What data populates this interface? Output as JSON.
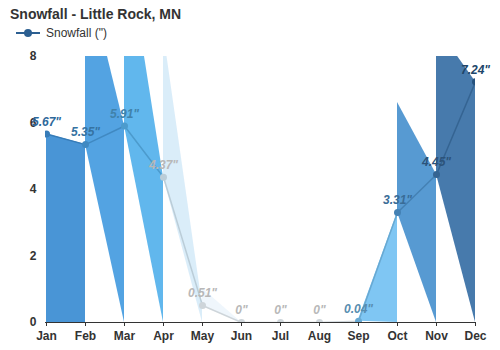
{
  "chart_data": {
    "type": "area",
    "title": "Snowfall - Little Rock, MN",
    "categories": [
      "Jan",
      "Feb",
      "Mar",
      "Apr",
      "May",
      "Jun",
      "Jul",
      "Aug",
      "Sep",
      "Oct",
      "Nov",
      "Dec"
    ],
    "series": [
      {
        "name": "Snowfall (\")",
        "colors": [
          "#3f8fd4",
          "#4a9ee0",
          "#58b3ec",
          "#d8ecf9",
          "#eef6fc",
          "#eef6fc",
          "#eef6fc",
          "#eef6fc",
          "#78c3f2",
          "#4e95d0",
          "#3d73a8",
          "#2c5f91"
        ],
        "values": [
          5.67,
          5.35,
          5.91,
          4.37,
          0.51,
          0,
          0,
          0,
          0.04,
          3.31,
          4.45,
          7.24
        ],
        "value_labels": [
          "5.67\"",
          "5.35\"",
          "5.91\"",
          "4.37\"",
          "0.51\"",
          "0\"",
          "0\"",
          "0\"",
          "0.04\"",
          "3.31\"",
          "4.45\"",
          "7.24\""
        ]
      }
    ],
    "ylim": [
      0,
      8
    ],
    "yticks": [
      0,
      2,
      4,
      6,
      8
    ],
    "grid": false,
    "legend": "top-left",
    "marker": "circle",
    "data_labels": true
  }
}
